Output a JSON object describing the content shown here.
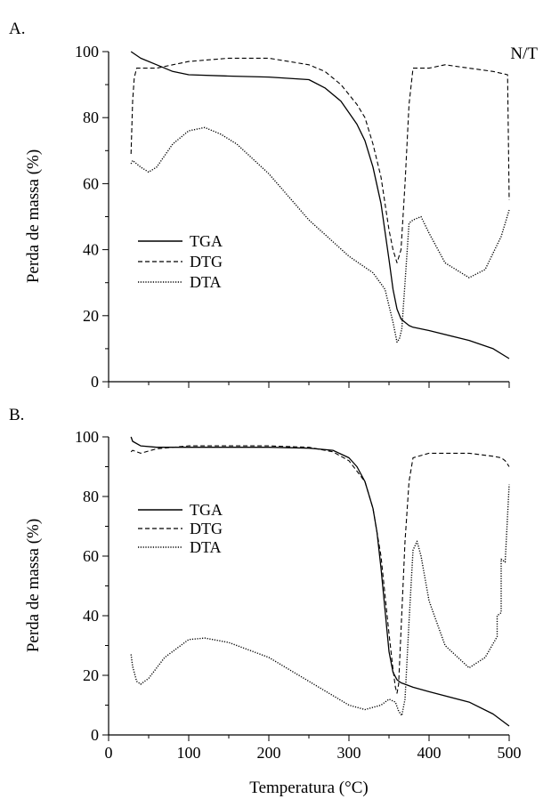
{
  "corner_label": "N/T",
  "xlabel": "Temperatura (°C)",
  "chart_data": [
    {
      "type": "line",
      "panel_label": "A.",
      "xlim": [
        0,
        500
      ],
      "ylim": [
        0,
        100
      ],
      "xticks": [],
      "yticks": [
        0,
        20,
        40,
        60,
        80,
        100
      ],
      "xlabel": "",
      "ylabel": "Perda de massa (%)",
      "grid": false,
      "legend": "center-left",
      "series": [
        {
          "name": "TGA",
          "style": "solid",
          "x": [
            28,
            40,
            60,
            80,
            100,
            150,
            200,
            250,
            270,
            290,
            310,
            320,
            330,
            340,
            350,
            355,
            360,
            365,
            370,
            375,
            380,
            400,
            450,
            480,
            500
          ],
          "y": [
            100,
            98,
            96,
            94,
            93,
            92.6,
            92.3,
            91.5,
            89,
            85,
            78,
            73,
            65,
            54,
            37,
            28,
            22,
            19,
            18,
            17,
            16.5,
            15.5,
            12.5,
            10,
            7
          ]
        },
        {
          "name": "DTG",
          "style": "dashed",
          "x": [
            28,
            30,
            32,
            35,
            40,
            60,
            80,
            100,
            150,
            200,
            250,
            270,
            290,
            310,
            320,
            330,
            340,
            350,
            355,
            360,
            365,
            370,
            375,
            380,
            400,
            420,
            450,
            480,
            498,
            500
          ],
          "y": [
            69,
            85,
            92,
            95,
            95,
            95,
            96,
            97,
            98,
            98,
            96,
            94,
            90,
            84,
            80,
            72,
            62,
            46,
            40,
            36,
            40,
            60,
            84,
            95,
            95,
            96,
            95,
            94,
            93,
            55
          ]
        },
        {
          "name": "DTA",
          "style": "dotted",
          "x": [
            28,
            30,
            40,
            50,
            60,
            80,
            100,
            120,
            140,
            160,
            200,
            250,
            300,
            330,
            345,
            355,
            360,
            363,
            366,
            370,
            375,
            380,
            390,
            400,
            420,
            450,
            470,
            490,
            500
          ],
          "y": [
            66,
            67,
            65,
            63.5,
            65,
            72,
            76,
            77,
            75,
            72,
            63,
            49,
            38,
            33,
            28,
            18,
            12,
            13,
            16,
            30,
            48,
            49,
            50,
            45,
            36,
            31.5,
            34,
            44,
            52
          ]
        }
      ]
    },
    {
      "type": "line",
      "panel_label": "B.",
      "xlim": [
        0,
        500
      ],
      "ylim": [
        0,
        100
      ],
      "xticks": [
        0,
        100,
        200,
        300,
        400,
        500
      ],
      "yticks": [
        0,
        20,
        40,
        60,
        80,
        100
      ],
      "xlabel": "Temperatura (°C)",
      "ylabel": "Perda de massa (%)",
      "grid": false,
      "legend": "center-left",
      "series": [
        {
          "name": "TGA",
          "style": "solid",
          "x": [
            28,
            30,
            40,
            60,
            100,
            150,
            200,
            250,
            280,
            300,
            310,
            320,
            330,
            335,
            340,
            345,
            350,
            355,
            360,
            365,
            370,
            380,
            400,
            450,
            480,
            500
          ],
          "y": [
            100,
            98.5,
            97,
            96.5,
            96.5,
            96.5,
            96.5,
            96.2,
            95.5,
            93,
            90,
            85,
            76,
            68,
            56,
            42,
            28,
            21,
            18.5,
            17.5,
            17,
            16,
            14.5,
            11,
            7,
            3
          ]
        },
        {
          "name": "DTG",
          "style": "dashed",
          "x": [
            28,
            30,
            40,
            60,
            100,
            150,
            200,
            250,
            280,
            300,
            320,
            330,
            340,
            345,
            350,
            355,
            358,
            360,
            362,
            365,
            370,
            375,
            380,
            400,
            450,
            480,
            490,
            495,
            500
          ],
          "y": [
            95,
            95.5,
            94.5,
            96,
            97,
            97,
            97,
            96.5,
            95,
            92,
            85,
            76,
            60,
            47,
            34,
            22,
            16,
            14,
            17,
            35,
            65,
            85,
            93,
            94.5,
            94.5,
            93.5,
            93,
            92,
            90
          ]
        },
        {
          "name": "DTA",
          "style": "dotted",
          "x": [
            28,
            30,
            35,
            40,
            50,
            70,
            100,
            120,
            150,
            200,
            250,
            300,
            320,
            340,
            350,
            358,
            362,
            366,
            370,
            375,
            380,
            385,
            390,
            400,
            420,
            450,
            470,
            485,
            485,
            490,
            490,
            495,
            500
          ],
          "y": [
            27,
            23,
            18,
            17,
            19,
            26,
            32,
            32.5,
            31,
            26,
            18,
            10,
            8.5,
            10,
            12,
            11,
            8,
            6.5,
            12,
            38,
            62,
            65,
            60,
            45,
            30,
            22.5,
            26,
            33,
            40,
            41,
            59,
            58,
            84
          ]
        }
      ]
    }
  ]
}
